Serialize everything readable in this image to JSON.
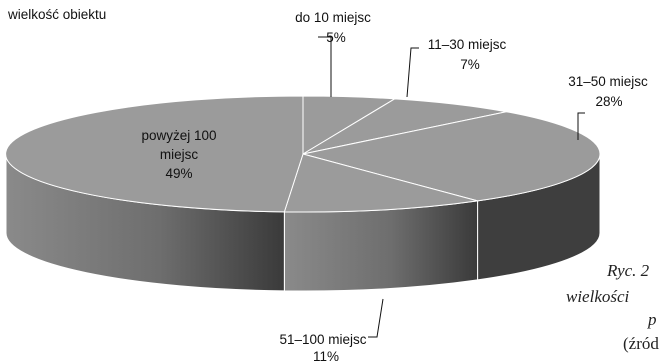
{
  "chart_data": {
    "type": "pie",
    "style": "3d",
    "legend_title": "wielkość obiektu",
    "slices": [
      {
        "name": "do 10 miejsc",
        "value_label": "5%",
        "value": 5
      },
      {
        "name": "11–30 miejsc",
        "value_label": "7%",
        "value": 7
      },
      {
        "name": "31–50 miejsc",
        "value_label": "28%",
        "value": 28
      },
      {
        "name": "51–100 miejsc",
        "value_label": "11%",
        "value": 11
      },
      {
        "name": "powyżej 100",
        "name_line2": "miejsc",
        "value_label": "49%",
        "value": 49
      }
    ],
    "colors": {
      "top": "#9b9b9b",
      "side_light": "#8a8a8a",
      "side_dark": "#3e3e3e",
      "edge": "#ffffff"
    }
  },
  "caption": {
    "line1": "Ryc. 2",
    "line2": "wielkości",
    "line3": "p",
    "line4": "(źród"
  }
}
